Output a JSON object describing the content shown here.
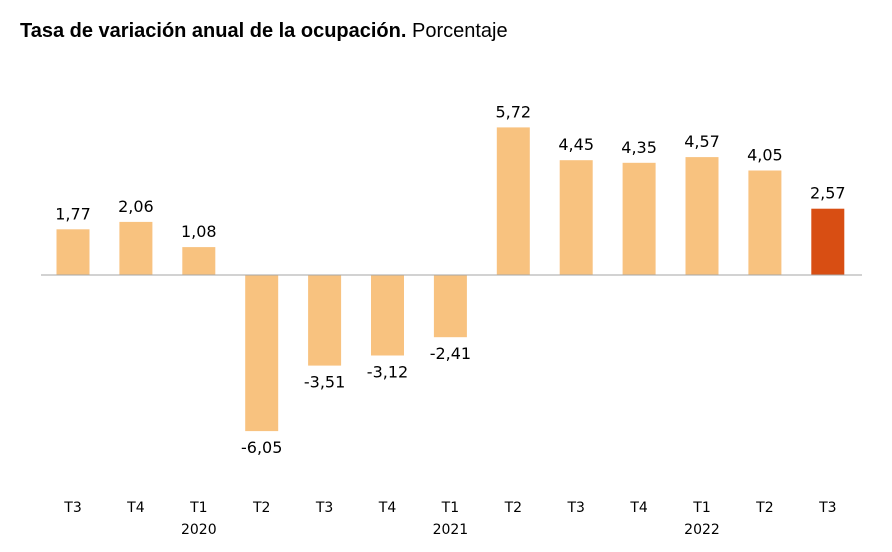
{
  "header": {
    "title_bold": "Tasa de variación anual de la ocupación.",
    "title_rest": "Porcentaje"
  },
  "chart_data": {
    "type": "bar",
    "title": "Tasa de variación anual de la ocupación. Porcentaje",
    "categories": [
      "T3",
      "T4",
      "T1",
      "T2",
      "T3",
      "T4",
      "T1",
      "T2",
      "T3",
      "T4",
      "T1",
      "T2",
      "T3"
    ],
    "years": [
      "",
      "",
      "2020",
      "",
      "",
      "",
      "2021",
      "",
      "",
      "",
      "2022",
      "",
      ""
    ],
    "values": [
      1.77,
      2.06,
      1.08,
      -6.05,
      -3.51,
      -3.12,
      -2.41,
      5.72,
      4.45,
      4.35,
      4.57,
      4.05,
      2.57
    ],
    "value_labels": [
      "1,77",
      "2,06",
      "1,08",
      "-6,05",
      "-3,51",
      "-3,12",
      "-2,41",
      "5,72",
      "4,45",
      "4,35",
      "4,57",
      "4,05",
      "2,57"
    ],
    "highlight_index": 12,
    "colors": {
      "bar": "#F8C27F",
      "highlight": "#D84E13",
      "axis": "#A6A6A6"
    },
    "xlabel": "",
    "ylabel": "",
    "grid": false,
    "legend": "none"
  }
}
